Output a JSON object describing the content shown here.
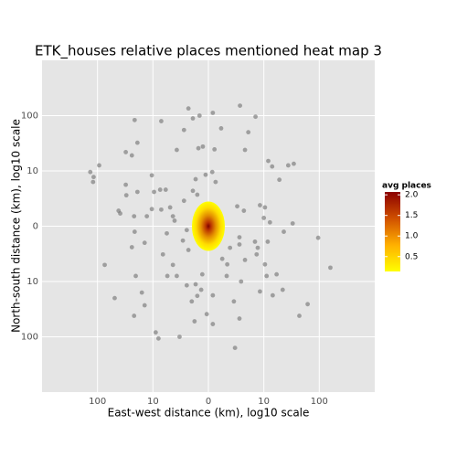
{
  "chart_data": {
    "type": "scatter",
    "title": "ETK_houses relative places mentioned heat map 3",
    "x_label": "East-west distance (km), log10 scale",
    "y_label": "North-south distance (km), log10 scale",
    "xlim": [
      -3,
      3
    ],
    "ylim": [
      -3,
      3
    ],
    "xticks": [
      {
        "value": -2,
        "label": "100"
      },
      {
        "value": -1,
        "label": "10"
      },
      0,
      {
        "value": 1,
        "label": "10"
      },
      {
        "value": 2,
        "label": "100"
      }
    ],
    "yticks": [
      {
        "value": -2,
        "label": "100"
      },
      {
        "value": -1,
        "label": "10"
      },
      0,
      {
        "value": 1,
        "label": "10"
      },
      {
        "value": 2,
        "label": "100"
      }
    ],
    "grid": true,
    "color": "#6e6e6e",
    "legend": {
      "title": "avg places",
      "position": "right",
      "colors": [
        "#ffff00",
        "#ffb000",
        "#d05000",
        "#8b0000"
      ],
      "clim": [
        0.14,
        2.07
      ],
      "ticks": [
        0.5,
        {
          "value": 1.0,
          "label": "1.0"
        },
        1.5,
        {
          "value": 2.0,
          "label": "2.0"
        }
      ]
    },
    "x": [
      -0.36,
      -0.16,
      -0.28,
      0.08,
      0.57,
      0.85,
      -1.33,
      -0.85,
      -0.44,
      0.23,
      0.72,
      -1.28,
      -0.57,
      -0.18,
      -0.1,
      0.11,
      0.66,
      -1.49,
      -1.38,
      -2.13,
      -2.08,
      -1.97,
      -2.07,
      0.07,
      1.08,
      1.15,
      1.28,
      1.44,
      1.54,
      -1.49,
      -1.48,
      -1.02,
      -0.87,
      -0.77,
      -0.23,
      -0.05,
      0.13,
      -0.28,
      -0.2,
      -0.44,
      -1.28,
      -0.98,
      -1.02,
      -1.62,
      -1.59,
      -1.34,
      -1.11,
      -0.85,
      -0.69,
      -0.64,
      -0.61,
      -1.33,
      -0.75,
      -0.39,
      0.52,
      0.64,
      0.93,
      1.02,
      1.0,
      1.11,
      1.36,
      1.52,
      0.56,
      0.39,
      0.56,
      0.84,
      0.89,
      1.07,
      1.98,
      -1.38,
      -1.15,
      -0.46,
      -0.36,
      -0.82,
      0.87,
      0.25,
      0.34,
      0.66,
      1.02,
      1.23,
      -1.87,
      -1.31,
      -0.64,
      -0.57,
      -0.74,
      -0.11,
      -0.39,
      -0.23,
      -0.13,
      -0.2,
      0.33,
      1.05,
      0.59,
      1.16,
      0.93,
      1.34,
      1.79,
      1.64,
      2.2,
      -1.69,
      -1.2,
      -1.15,
      -1.34,
      -0.3,
      0.08,
      0.46,
      -0.03,
      -0.25,
      0.08,
      0.56,
      -0.95,
      -0.9,
      -0.52,
      0.48
    ],
    "values": [
      2.13,
      2.0,
      1.95,
      2.05,
      2.18,
      1.98,
      1.92,
      1.9,
      1.74,
      1.77,
      1.7,
      1.51,
      1.38,
      1.41,
      1.44,
      1.39,
      1.38,
      1.34,
      1.28,
      0.98,
      0.8,
      1.1,
      0.89,
      0.98,
      1.18,
      1.08,
      0.84,
      1.1,
      1.13,
      0.75,
      0.56,
      0.92,
      0.66,
      0.66,
      0.85,
      0.93,
      0.8,
      0.64,
      0.57,
      0.46,
      0.62,
      0.62,
      0.31,
      0.28,
      0.23,
      0.18,
      0.18,
      0.3,
      0.34,
      0.18,
      0.1,
      -0.1,
      -0.13,
      -0.07,
      0.36,
      0.28,
      0.38,
      0.34,
      0.15,
      0.07,
      -0.1,
      0.05,
      -0.2,
      -0.39,
      -0.33,
      -0.28,
      -0.39,
      -0.28,
      -0.21,
      -0.38,
      -0.3,
      -0.26,
      -0.43,
      -0.51,
      -0.51,
      -0.59,
      -0.69,
      -0.61,
      -0.69,
      -0.87,
      -0.7,
      -0.9,
      -0.7,
      -0.9,
      -0.9,
      -0.87,
      -1.07,
      -1.05,
      -1.15,
      -1.26,
      -0.9,
      -0.9,
      -1.0,
      -1.25,
      -1.18,
      -1.15,
      -1.41,
      -1.62,
      -0.75,
      -1.3,
      -1.2,
      -1.43,
      -1.62,
      -1.36,
      -1.25,
      -1.36,
      -1.59,
      -1.72,
      -1.77,
      -1.67,
      -1.92,
      -2.03,
      -2.0,
      -2.2
    ]
  }
}
